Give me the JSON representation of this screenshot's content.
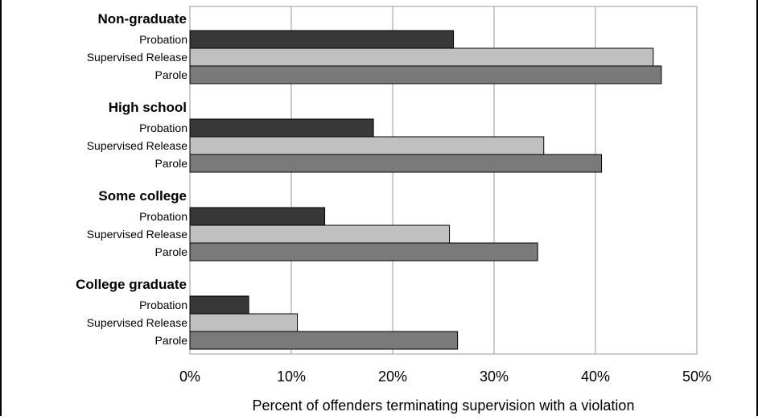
{
  "chart_data": {
    "type": "bar",
    "orientation": "horizontal",
    "xlabel": "Percent of offenders terminating supervision with a violation",
    "xlim": [
      0,
      50
    ],
    "xticks": [
      0,
      10,
      20,
      30,
      40,
      50
    ],
    "xtick_labels": [
      "0%",
      "10%",
      "20%",
      "30%",
      "40%",
      "50%"
    ],
    "grid": "vertical",
    "groups": [
      {
        "label": "Non-graduate",
        "bars": [
          {
            "label": "Probation",
            "value": 26.0
          },
          {
            "label": "Supervised Release",
            "value": 45.7
          },
          {
            "label": "Parole",
            "value": 46.5
          }
        ]
      },
      {
        "label": "High school",
        "bars": [
          {
            "label": "Probation",
            "value": 18.1
          },
          {
            "label": "Supervised Release",
            "value": 34.9
          },
          {
            "label": "Parole",
            "value": 40.6
          }
        ]
      },
      {
        "label": "Some college",
        "bars": [
          {
            "label": "Probation",
            "value": 13.3
          },
          {
            "label": "Supervised Release",
            "value": 25.6
          },
          {
            "label": "Parole",
            "value": 34.3
          }
        ]
      },
      {
        "label": "College graduate",
        "bars": [
          {
            "label": "Probation",
            "value": 5.8
          },
          {
            "label": "Supervised Release",
            "value": 10.6
          },
          {
            "label": "Parole",
            "value": 26.4
          }
        ]
      }
    ],
    "colors": {
      "Probation": "#383838",
      "Supervised Release": "#c0c0c0",
      "Parole": "#7a7a7a",
      "grid": "#999999",
      "bar_outline": "#000000"
    }
  }
}
